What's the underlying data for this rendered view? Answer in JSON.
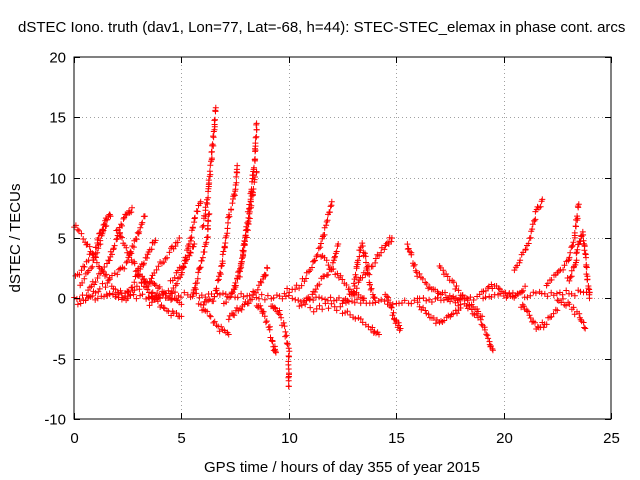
{
  "chart_data": {
    "type": "scatter",
    "title": "dSTEC Iono. truth (dav1, Lon=77, Lat=-68, h=44): STEC-STEC_elemax in phase cont. arcs",
    "xlabel": "GPS time / hours of day 355 of year 2015",
    "ylabel": "dSTEC  / TECUs",
    "xlim": [
      0,
      25
    ],
    "ylim": [
      -10,
      20
    ],
    "xticks": [
      0,
      5,
      10,
      15,
      20,
      25
    ],
    "yticks": [
      -10,
      -5,
      0,
      5,
      10,
      15,
      20
    ],
    "grid": true,
    "marker": "plus",
    "color": "#ff0000",
    "arcs": [
      [
        [
          0.0,
          6.0
        ],
        [
          0.5,
          4.8
        ],
        [
          1.0,
          3.2
        ],
        [
          1.5,
          1.8
        ],
        [
          2.0,
          0.6
        ],
        [
          2.5,
          0.0
        ]
      ],
      [
        [
          0.3,
          1.2
        ],
        [
          0.8,
          2.5
        ],
        [
          1.2,
          4.5
        ],
        [
          1.5,
          6.5
        ],
        [
          1.7,
          6.8
        ]
      ],
      [
        [
          0.6,
          0.5
        ],
        [
          1.0,
          1.5
        ],
        [
          1.6,
          3.0
        ],
        [
          2.0,
          5.0
        ],
        [
          2.4,
          6.8
        ],
        [
          2.7,
          7.5
        ]
      ],
      [
        [
          0.2,
          -0.5
        ],
        [
          1.0,
          0.5
        ],
        [
          2.0,
          2.0
        ],
        [
          2.5,
          3.0
        ],
        [
          3.0,
          5.5
        ],
        [
          3.3,
          6.8
        ]
      ],
      [
        [
          0.0,
          1.5
        ],
        [
          0.5,
          2.8
        ],
        [
          1.0,
          4.0
        ],
        [
          1.2,
          5.5
        ],
        [
          1.5,
          6.0
        ]
      ],
      [
        [
          1.5,
          0.2
        ],
        [
          2.5,
          0.5
        ],
        [
          3.0,
          2.0
        ],
        [
          3.5,
          4.0
        ],
        [
          3.8,
          4.8
        ]
      ],
      [
        [
          2.0,
          5.8
        ],
        [
          2.5,
          4.0
        ],
        [
          3.0,
          2.0
        ],
        [
          3.5,
          0.5
        ],
        [
          4.0,
          0.0
        ]
      ],
      [
        [
          2.5,
          0.3
        ],
        [
          3.5,
          1.5
        ],
        [
          4.0,
          2.8
        ],
        [
          4.5,
          4.0
        ],
        [
          4.9,
          5.0
        ]
      ],
      [
        [
          3.0,
          2.5
        ],
        [
          3.5,
          1.2
        ],
        [
          4.0,
          0.8
        ],
        [
          4.5,
          0.0
        ],
        [
          5.0,
          -0.5
        ]
      ],
      [
        [
          3.5,
          -0.4
        ],
        [
          4.5,
          0.5
        ],
        [
          5.0,
          2.0
        ],
        [
          5.3,
          4.0
        ],
        [
          5.6,
          6.5
        ],
        [
          5.9,
          8.0
        ]
      ],
      [
        [
          3.5,
          0.2
        ],
        [
          4.0,
          -0.5
        ],
        [
          4.5,
          -1.2
        ],
        [
          5.0,
          -1.5
        ]
      ],
      [
        [
          4.5,
          1.5
        ],
        [
          5.0,
          2.5
        ],
        [
          5.3,
          3.5
        ],
        [
          5.6,
          4.5
        ]
      ],
      [
        [
          5.5,
          0.0
        ],
        [
          5.8,
          2.0
        ],
        [
          6.0,
          3.5
        ],
        [
          6.2,
          5.0
        ],
        [
          6.3,
          7.0
        ]
      ],
      [
        [
          6.0,
          6.0
        ],
        [
          6.2,
          8.0
        ],
        [
          6.3,
          10.0
        ],
        [
          6.4,
          11.5
        ],
        [
          6.5,
          13.5
        ],
        [
          6.6,
          15.8
        ]
      ],
      [
        [
          6.0,
          -0.5
        ],
        [
          6.5,
          0.0
        ],
        [
          6.8,
          2.0
        ],
        [
          7.0,
          4.0
        ],
        [
          7.2,
          6.5
        ],
        [
          7.5,
          9.0
        ],
        [
          7.6,
          11.0
        ]
      ],
      [
        [
          5.8,
          -0.5
        ],
        [
          6.3,
          -1.5
        ],
        [
          6.8,
          -2.5
        ],
        [
          7.2,
          -3.0
        ]
      ],
      [
        [
          7.0,
          -0.5
        ],
        [
          7.5,
          1.0
        ],
        [
          7.8,
          3.0
        ],
        [
          8.0,
          5.5
        ],
        [
          8.2,
          8.0
        ],
        [
          8.4,
          11.0
        ],
        [
          8.5,
          14.5
        ]
      ],
      [
        [
          7.4,
          0.5
        ],
        [
          7.7,
          2.0
        ],
        [
          7.9,
          4.0
        ],
        [
          8.1,
          6.0
        ],
        [
          8.3,
          8.5
        ],
        [
          8.5,
          10.5
        ]
      ],
      [
        [
          7.2,
          -1.5
        ],
        [
          7.6,
          -1.0
        ],
        [
          8.0,
          -0.5
        ],
        [
          8.4,
          0.5
        ],
        [
          8.8,
          1.5
        ],
        [
          9.0,
          2.5
        ]
      ],
      [
        [
          8.5,
          -0.5
        ],
        [
          8.8,
          -1.0
        ],
        [
          9.1,
          -2.5
        ],
        [
          9.3,
          -4.0
        ],
        [
          9.4,
          -4.5
        ]
      ],
      [
        [
          9.2,
          -0.5
        ],
        [
          9.5,
          -1.0
        ],
        [
          9.8,
          -2.5
        ],
        [
          10.0,
          -4.5
        ],
        [
          10.0,
          -6.0
        ],
        [
          10.0,
          -7.3
        ]
      ],
      [
        [
          9.8,
          0.5
        ],
        [
          10.5,
          1.0
        ],
        [
          11.0,
          2.5
        ],
        [
          11.5,
          4.5
        ],
        [
          11.8,
          6.5
        ],
        [
          12.0,
          8.0
        ]
      ],
      [
        [
          10.5,
          -0.5
        ],
        [
          11.0,
          0.0
        ],
        [
          11.5,
          1.5
        ],
        [
          12.0,
          2.5
        ],
        [
          12.3,
          4.5
        ]
      ],
      [
        [
          11.5,
          3.5
        ],
        [
          12.0,
          2.5
        ],
        [
          12.5,
          1.5
        ],
        [
          13.0,
          0.5
        ],
        [
          13.5,
          0.0
        ]
      ],
      [
        [
          12.5,
          -0.5
        ],
        [
          13.0,
          0.5
        ],
        [
          13.5,
          2.0
        ],
        [
          14.0,
          3.0
        ],
        [
          14.5,
          4.5
        ],
        [
          14.8,
          5.0
        ]
      ],
      [
        [
          13.0,
          0.5
        ],
        [
          13.2,
          3.0
        ],
        [
          13.4,
          4.5
        ],
        [
          13.6,
          3.0
        ],
        [
          13.8,
          1.0
        ],
        [
          14.0,
          0.0
        ]
      ],
      [
        [
          11.0,
          -1.0
        ],
        [
          12.0,
          -0.5
        ],
        [
          13.0,
          -1.5
        ],
        [
          13.8,
          -2.5
        ],
        [
          14.2,
          -3.0
        ]
      ],
      [
        [
          14.5,
          0.5
        ],
        [
          14.8,
          -1.0
        ],
        [
          15.0,
          -2.0
        ],
        [
          15.2,
          -2.5
        ]
      ],
      [
        [
          15.5,
          4.5
        ],
        [
          16.0,
          2.0
        ],
        [
          16.5,
          1.0
        ],
        [
          17.0,
          0.5
        ],
        [
          17.5,
          0.0
        ],
        [
          18.0,
          -0.5
        ]
      ],
      [
        [
          16.0,
          -0.5
        ],
        [
          16.5,
          -1.5
        ],
        [
          17.0,
          -2.0
        ],
        [
          17.5,
          -1.5
        ],
        [
          18.0,
          -0.8
        ]
      ],
      [
        [
          17.0,
          2.5
        ],
        [
          17.5,
          1.5
        ],
        [
          18.0,
          0.5
        ],
        [
          18.5,
          -0.5
        ],
        [
          19.0,
          -1.5
        ]
      ],
      [
        [
          18.0,
          0.0
        ],
        [
          18.5,
          -1.0
        ],
        [
          19.0,
          -2.0
        ],
        [
          19.3,
          -3.5
        ],
        [
          19.5,
          -4.3
        ]
      ],
      [
        [
          19.0,
          0.5
        ],
        [
          19.5,
          1.0
        ],
        [
          20.0,
          0.5
        ],
        [
          20.5,
          0.0
        ],
        [
          21.0,
          1.0
        ]
      ],
      [
        [
          20.5,
          2.5
        ],
        [
          21.0,
          4.0
        ],
        [
          21.3,
          5.5
        ],
        [
          21.5,
          7.0
        ],
        [
          21.8,
          8.2
        ]
      ],
      [
        [
          20.8,
          -0.5
        ],
        [
          21.2,
          -1.5
        ],
        [
          21.6,
          -2.5
        ],
        [
          22.0,
          -2.0
        ],
        [
          22.5,
          -1.0
        ]
      ],
      [
        [
          22.0,
          1.0
        ],
        [
          22.5,
          2.0
        ],
        [
          23.0,
          3.0
        ],
        [
          23.3,
          5.0
        ],
        [
          23.5,
          7.8
        ]
      ],
      [
        [
          22.5,
          0.0
        ],
        [
          23.0,
          -0.5
        ],
        [
          23.5,
          -1.5
        ],
        [
          23.8,
          -2.5
        ]
      ],
      [
        [
          23.0,
          1.5
        ],
        [
          23.3,
          2.5
        ],
        [
          23.5,
          4.5
        ],
        [
          23.7,
          5.5
        ],
        [
          24.0,
          0.0
        ]
      ],
      [
        [
          0.0,
          0.0
        ],
        [
          5.0,
          0.3
        ],
        [
          10.0,
          0.0
        ],
        [
          15.0,
          -0.3
        ],
        [
          20.0,
          0.2
        ],
        [
          24.0,
          0.5
        ]
      ]
    ]
  }
}
